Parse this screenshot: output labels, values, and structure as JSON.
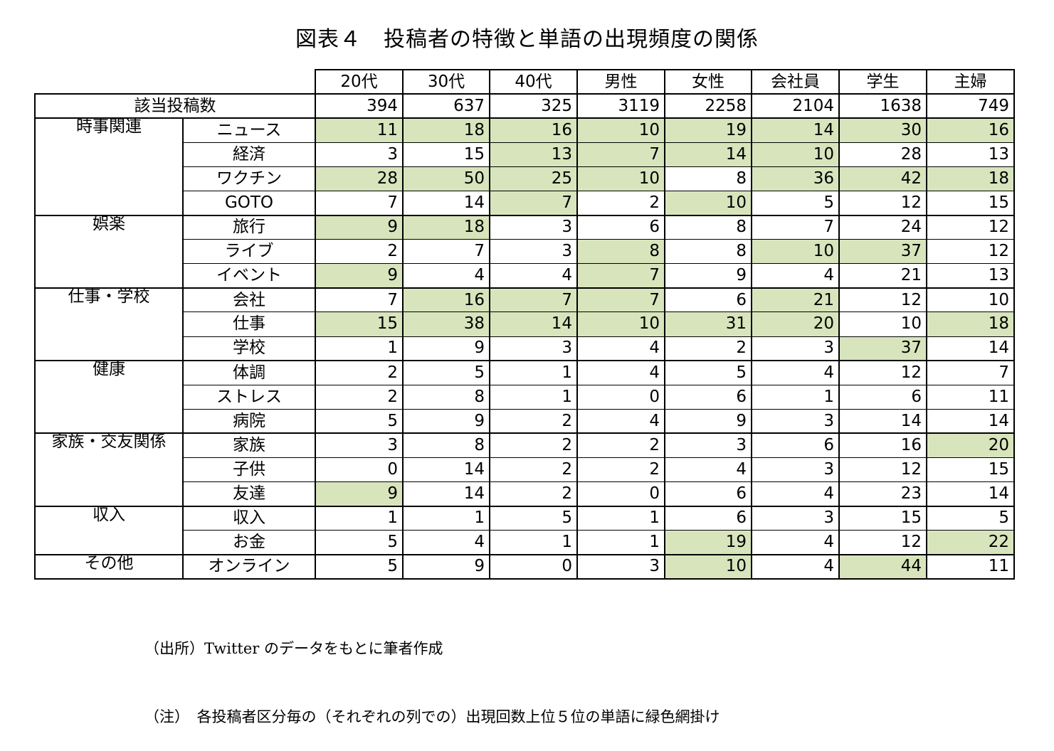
{
  "chart_data": {
    "type": "table",
    "title": "図表４　投稿者の特徴と単語の出現頻度の関係",
    "columns": [
      "20代",
      "30代",
      "40代",
      "男性",
      "女性",
      "会社員",
      "学生",
      "主婦"
    ],
    "total_label": "該当投稿数",
    "totals": [
      394,
      637,
      325,
      3119,
      2258,
      2104,
      1638,
      749
    ],
    "highlight_color": "#d8e4bc",
    "groups": [
      {
        "category": "時事関連",
        "rows": [
          {
            "word": "ニュース",
            "values": [
              11,
              18,
              16,
              10,
              19,
              14,
              30,
              16
            ],
            "highlight": [
              1,
              1,
              1,
              1,
              1,
              1,
              1,
              1
            ]
          },
          {
            "word": "経済",
            "values": [
              3,
              15,
              13,
              7,
              14,
              10,
              28,
              13
            ],
            "highlight": [
              0,
              0,
              1,
              1,
              1,
              1,
              0,
              0
            ]
          },
          {
            "word": "ワクチン",
            "values": [
              28,
              50,
              25,
              10,
              8,
              36,
              42,
              18
            ],
            "highlight": [
              1,
              1,
              1,
              1,
              0,
              1,
              1,
              1
            ]
          },
          {
            "word": "GOTO",
            "values": [
              7,
              14,
              7,
              2,
              10,
              5,
              12,
              15
            ],
            "highlight": [
              0,
              0,
              1,
              0,
              1,
              0,
              0,
              0
            ]
          }
        ]
      },
      {
        "category": "娯楽",
        "rows": [
          {
            "word": "旅行",
            "values": [
              9,
              18,
              3,
              6,
              8,
              7,
              24,
              12
            ],
            "highlight": [
              1,
              1,
              0,
              0,
              0,
              0,
              0,
              0
            ]
          },
          {
            "word": "ライブ",
            "values": [
              2,
              7,
              3,
              8,
              8,
              10,
              37,
              12
            ],
            "highlight": [
              0,
              0,
              0,
              1,
              0,
              1,
              1,
              0
            ]
          },
          {
            "word": "イベント",
            "values": [
              9,
              4,
              4,
              7,
              9,
              4,
              21,
              13
            ],
            "highlight": [
              1,
              0,
              0,
              1,
              0,
              0,
              0,
              0
            ]
          }
        ]
      },
      {
        "category": "仕事・学校",
        "rows": [
          {
            "word": "会社",
            "values": [
              7,
              16,
              7,
              7,
              6,
              21,
              12,
              10
            ],
            "highlight": [
              0,
              1,
              1,
              1,
              0,
              1,
              0,
              0
            ]
          },
          {
            "word": "仕事",
            "values": [
              15,
              38,
              14,
              10,
              31,
              20,
              10,
              18
            ],
            "highlight": [
              1,
              1,
              1,
              1,
              1,
              1,
              0,
              1
            ]
          },
          {
            "word": "学校",
            "values": [
              1,
              9,
              3,
              4,
              2,
              3,
              37,
              14
            ],
            "highlight": [
              0,
              0,
              0,
              0,
              0,
              0,
              1,
              0
            ]
          }
        ]
      },
      {
        "category": "健康",
        "rows": [
          {
            "word": "体調",
            "values": [
              2,
              5,
              1,
              4,
              5,
              4,
              12,
              7
            ],
            "highlight": [
              0,
              0,
              0,
              0,
              0,
              0,
              0,
              0
            ]
          },
          {
            "word": "ストレス",
            "values": [
              2,
              8,
              1,
              0,
              6,
              1,
              6,
              11
            ],
            "highlight": [
              0,
              0,
              0,
              0,
              0,
              0,
              0,
              0
            ]
          },
          {
            "word": "病院",
            "values": [
              5,
              9,
              2,
              4,
              9,
              3,
              14,
              14
            ],
            "highlight": [
              0,
              0,
              0,
              0,
              0,
              0,
              0,
              0
            ]
          }
        ]
      },
      {
        "category": "家族・交友関係",
        "rows": [
          {
            "word": "家族",
            "values": [
              3,
              8,
              2,
              2,
              3,
              6,
              16,
              20
            ],
            "highlight": [
              0,
              0,
              0,
              0,
              0,
              0,
              0,
              1
            ]
          },
          {
            "word": "子供",
            "values": [
              0,
              14,
              2,
              2,
              4,
              3,
              12,
              15
            ],
            "highlight": [
              0,
              0,
              0,
              0,
              0,
              0,
              0,
              0
            ]
          },
          {
            "word": "友達",
            "values": [
              9,
              14,
              2,
              0,
              6,
              4,
              23,
              14
            ],
            "highlight": [
              1,
              0,
              0,
              0,
              0,
              0,
              0,
              0
            ]
          }
        ]
      },
      {
        "category": "収入",
        "rows": [
          {
            "word": "収入",
            "values": [
              1,
              1,
              5,
              1,
              6,
              3,
              15,
              5
            ],
            "highlight": [
              0,
              0,
              0,
              0,
              0,
              0,
              0,
              0
            ]
          },
          {
            "word": "お金",
            "values": [
              5,
              4,
              1,
              1,
              19,
              4,
              12,
              22
            ],
            "highlight": [
              0,
              0,
              0,
              0,
              1,
              0,
              0,
              1
            ]
          }
        ]
      },
      {
        "category": "その他",
        "rows": [
          {
            "word": "オンライン",
            "values": [
              5,
              9,
              0,
              3,
              10,
              4,
              44,
              11
            ],
            "highlight": [
              0,
              0,
              0,
              0,
              1,
              0,
              1,
              0
            ]
          }
        ]
      }
    ],
    "notes": [
      "（出所）Twitter のデータをもとに筆者作成",
      "（注）　各投稿者区分毎の（それぞれの列での）出現回数上位５位の単語に緑色網掛け"
    ]
  }
}
